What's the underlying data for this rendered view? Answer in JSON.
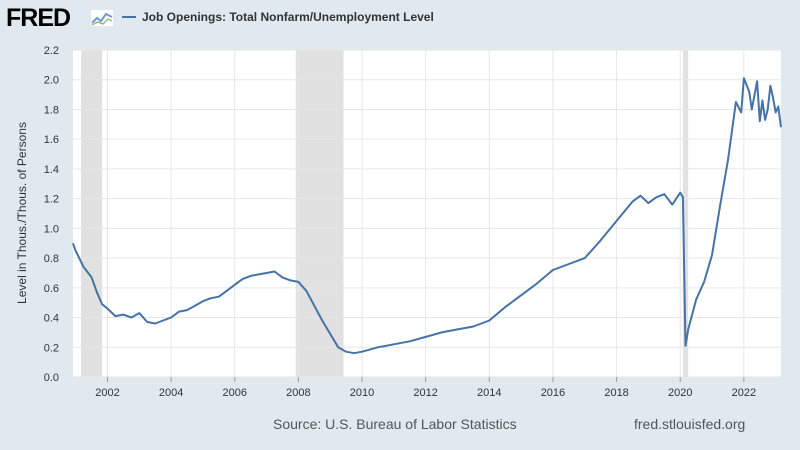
{
  "header": {
    "logo_text": "FRED",
    "legend_label": "Job Openings: Total Nonfarm/Unemployment Level",
    "series_color": "#4572a7"
  },
  "footer": {
    "source": "Source: U.S. Bureau of Labor Statistics",
    "url": "fred.stlouisfed.org"
  },
  "chart_data": {
    "type": "line",
    "title": "",
    "ylabel": "Level in Thous./Thous. of Persons",
    "xlabel": "",
    "xlim": [
      2000.917,
      2023.167
    ],
    "ylim": [
      0,
      2.2
    ],
    "x_ticks": [
      2002,
      2004,
      2006,
      2008,
      2010,
      2012,
      2014,
      2016,
      2018,
      2020,
      2022
    ],
    "y_ticks": [
      0.0,
      0.2,
      0.4,
      0.6,
      0.8,
      1.0,
      1.2,
      1.4,
      1.6,
      1.8,
      2.0,
      2.2
    ],
    "recessions": [
      [
        2001.167,
        2001.833
      ],
      [
        2007.917,
        2009.417
      ],
      [
        2020.083,
        2020.25
      ]
    ],
    "grid": true,
    "legend": "top-left",
    "series": [
      {
        "name": "Job Openings: Total Nonfarm/Unemployment Level",
        "color": "#4572a7",
        "x": [
          2000.917,
          2001.0,
          2001.25,
          2001.5,
          2001.667,
          2001.833,
          2002.0,
          2002.25,
          2002.5,
          2002.75,
          2003.0,
          2003.25,
          2003.5,
          2003.75,
          2004.0,
          2004.25,
          2004.5,
          2004.75,
          2005.0,
          2005.25,
          2005.5,
          2005.75,
          2006.0,
          2006.25,
          2006.5,
          2006.75,
          2007.0,
          2007.25,
          2007.5,
          2007.75,
          2008.0,
          2008.25,
          2008.5,
          2008.75,
          2009.0,
          2009.25,
          2009.5,
          2009.75,
          2010.0,
          2010.5,
          2011.0,
          2011.5,
          2012.0,
          2012.5,
          2013.0,
          2013.5,
          2014.0,
          2014.5,
          2015.0,
          2015.5,
          2016.0,
          2016.5,
          2017.0,
          2017.5,
          2018.0,
          2018.5,
          2018.75,
          2019.0,
          2019.25,
          2019.5,
          2019.75,
          2020.0,
          2020.083,
          2020.167,
          2020.25,
          2020.5,
          2020.75,
          2021.0,
          2021.25,
          2021.5,
          2021.75,
          2021.917,
          2022.0,
          2022.167,
          2022.25,
          2022.417,
          2022.5,
          2022.583,
          2022.667,
          2022.75,
          2022.833,
          2022.917,
          2023.0,
          2023.083,
          2023.167
        ],
        "values": [
          0.9,
          0.85,
          0.74,
          0.67,
          0.57,
          0.49,
          0.46,
          0.41,
          0.42,
          0.4,
          0.43,
          0.37,
          0.36,
          0.38,
          0.4,
          0.44,
          0.45,
          0.48,
          0.51,
          0.53,
          0.54,
          0.58,
          0.62,
          0.66,
          0.68,
          0.69,
          0.7,
          0.71,
          0.67,
          0.65,
          0.64,
          0.58,
          0.48,
          0.38,
          0.29,
          0.2,
          0.17,
          0.16,
          0.17,
          0.2,
          0.22,
          0.24,
          0.27,
          0.3,
          0.32,
          0.34,
          0.38,
          0.47,
          0.55,
          0.63,
          0.72,
          0.76,
          0.8,
          0.92,
          1.05,
          1.18,
          1.22,
          1.17,
          1.21,
          1.23,
          1.16,
          1.24,
          1.21,
          0.21,
          0.32,
          0.52,
          0.64,
          0.82,
          1.15,
          1.46,
          1.85,
          1.78,
          2.01,
          1.92,
          1.8,
          1.99,
          1.72,
          1.86,
          1.73,
          1.8,
          1.96,
          1.88,
          1.78,
          1.82,
          1.68
        ]
      }
    ]
  }
}
